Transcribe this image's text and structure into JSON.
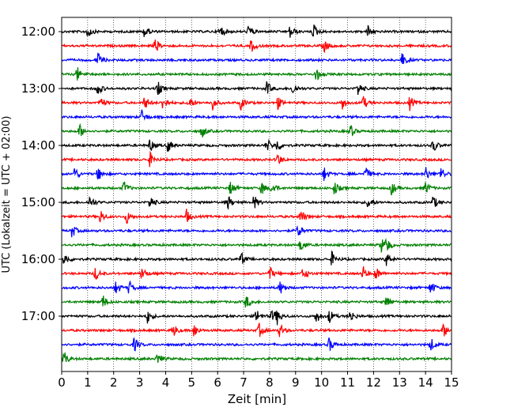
{
  "chart_data": {
    "type": "line",
    "title": "",
    "xlabel": "Zeit  [min]",
    "ylabel": "UTC (Lokalzeit = UTC + 02:00)",
    "xlim": [
      0,
      15
    ],
    "x_ticks": [
      "0",
      "1",
      "2",
      "3",
      "4",
      "5",
      "6",
      "7",
      "8",
      "9",
      "10",
      "11",
      "12",
      "13",
      "14",
      "15"
    ],
    "y_tick_labels": [
      "12:00",
      "13:00",
      "14:00",
      "15:00",
      "16:00",
      "17:00"
    ],
    "grid": "vertical dotted lines at each minute",
    "trace_interval_min": 15,
    "start_utc": "12:00",
    "color_cycle": [
      "#000000",
      "#ff0000",
      "#0000ff",
      "#008000"
    ],
    "traces": [
      {
        "start": "12:00",
        "color": "#000000",
        "events": [
          1,
          3.2,
          6.1,
          7.2,
          8.8,
          9.7,
          11.8
        ]
      },
      {
        "start": "12:15",
        "color": "#ff0000",
        "events": [
          3.6,
          7.3,
          10.1
        ]
      },
      {
        "start": "12:30",
        "color": "#0000ff",
        "events": [
          1.4,
          13.1
        ]
      },
      {
        "start": "12:45",
        "color": "#008000",
        "events": [
          0.6,
          9.8
        ]
      },
      {
        "start": "13:00",
        "color": "#000000",
        "events": [
          1.4,
          3.7,
          7.9,
          8.9,
          11.4
        ]
      },
      {
        "start": "13:15",
        "color": "#ff0000",
        "events": [
          1.5,
          3.2,
          3.9,
          4.9,
          5.8,
          6.9,
          8.3,
          10.8,
          11.6,
          13.4
        ]
      },
      {
        "start": "13:30",
        "color": "#0000ff",
        "events": [
          3.1
        ]
      },
      {
        "start": "13:45",
        "color": "#008000",
        "events": [
          0.7,
          5.4,
          11.1
        ]
      },
      {
        "start": "14:00",
        "color": "#000000",
        "events": [
          3.4,
          4.1,
          7.9,
          8.3,
          14.3
        ]
      },
      {
        "start": "14:15",
        "color": "#ff0000",
        "events": [
          3.4,
          8.3
        ]
      },
      {
        "start": "14:30",
        "color": "#0000ff",
        "events": [
          0.5,
          1.4,
          10.1,
          11.7,
          14.0,
          14.6
        ]
      },
      {
        "start": "14:45",
        "color": "#008000",
        "events": [
          2.4,
          6.5,
          7.7,
          8.1,
          10.5,
          12.7,
          14.0
        ]
      },
      {
        "start": "15:00",
        "color": "#000000",
        "events": [
          1.1,
          3.4,
          6.4,
          7.4,
          11.8,
          14.3
        ]
      },
      {
        "start": "15:15",
        "color": "#ff0000",
        "events": [
          1.5,
          2.5,
          4.8,
          9.2
        ]
      },
      {
        "start": "15:30",
        "color": "#0000ff",
        "events": [
          0.4,
          9.1
        ]
      },
      {
        "start": "15:45",
        "color": "#008000",
        "events": [
          9.2,
          12.3,
          12.5
        ]
      },
      {
        "start": "16:00",
        "color": "#000000",
        "events": [
          0.1,
          6.9,
          10.4,
          12.5
        ]
      },
      {
        "start": "16:15",
        "color": "#ff0000",
        "events": [
          1.3,
          3.1,
          8.0,
          9.3,
          11.6,
          12.1
        ]
      },
      {
        "start": "16:30",
        "color": "#0000ff",
        "events": [
          2.1,
          2.6,
          8.4,
          14.2
        ]
      },
      {
        "start": "16:45",
        "color": "#008000",
        "events": [
          1.6,
          7.1,
          12.5
        ]
      },
      {
        "start": "17:00",
        "color": "#000000",
        "events": [
          3.3,
          7.5,
          8.1,
          8.3,
          9.8,
          10.3,
          11.1
        ]
      },
      {
        "start": "17:15",
        "color": "#ff0000",
        "events": [
          4.3,
          5.1,
          7.6,
          8.4,
          14.7
        ]
      },
      {
        "start": "17:30",
        "color": "#0000ff",
        "events": [
          2.8,
          10.3,
          14.2
        ]
      },
      {
        "start": "17:45",
        "color": "#008000",
        "events": [
          0.1,
          3.7
        ]
      }
    ]
  }
}
